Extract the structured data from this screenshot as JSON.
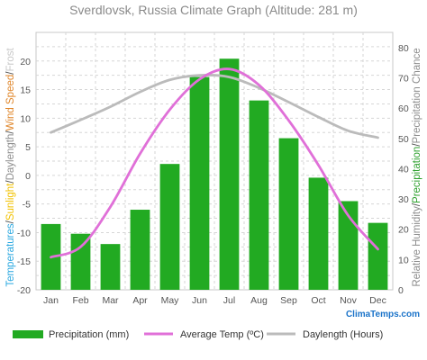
{
  "chart_data": {
    "type": "bar",
    "title": "Sverdlovsk, Russia Climate Graph (Altitude: 281 m)",
    "categories": [
      "Jan",
      "Feb",
      "Mar",
      "Apr",
      "May",
      "Jun",
      "Jul",
      "Aug",
      "Sep",
      "Oct",
      "Nov",
      "Dec"
    ],
    "ylim_left": [
      -20,
      25
    ],
    "ylim_right": [
      0,
      85
    ],
    "y_ticks_left": [
      "-20",
      "-15",
      "-10",
      "-5",
      "0",
      "5",
      "10",
      "15",
      "20"
    ],
    "y_ticks_right": [
      "0",
      "10",
      "20",
      "30",
      "40",
      "50",
      "60",
      "70",
      "80"
    ],
    "ylabel_left_parts": [
      {
        "text": "Temperatures",
        "color": "#2aa8e0"
      },
      {
        "text": "/",
        "color": "#555555"
      },
      {
        "text": "Sunlight",
        "color": "#f2c200"
      },
      {
        "text": "/",
        "color": "#555555"
      },
      {
        "text": "Daylength",
        "color": "#8c8c8c"
      },
      {
        "text": "/",
        "color": "#555555"
      },
      {
        "text": "Wind Speed",
        "color": "#e0862a"
      },
      {
        "text": "/",
        "color": "#555555"
      },
      {
        "text": "Frost",
        "color": "#c8c8c8"
      }
    ],
    "ylabel_right_parts": [
      {
        "text": "Relative Humidity",
        "color": "#8c8c8c"
      },
      {
        "text": "/",
        "color": "#555555"
      },
      {
        "text": "Precipitation",
        "color": "#2ca02c"
      },
      {
        "text": "/",
        "color": "#555555"
      },
      {
        "text": "Precipitation Chance",
        "color": "#8c8c8c"
      }
    ],
    "series": [
      {
        "name": "Precipitation (mm)",
        "type": "bar",
        "axis": "left",
        "color": "#22aa22",
        "values": [
          -8.5,
          -10.2,
          -12,
          -6,
          2,
          17.2,
          20.4,
          13.1,
          6.5,
          -0.4,
          -4.5,
          -8.3
        ]
      },
      {
        "name": "Average Temp (ºC)",
        "type": "line",
        "axis": "left",
        "color": "#e070d8",
        "values": [
          -14.3,
          -12.5,
          -5.5,
          3.8,
          11.5,
          16.8,
          18.6,
          15.8,
          9.6,
          1.8,
          -7,
          -12.9
        ]
      },
      {
        "name": "Daylength (Hours)",
        "type": "line",
        "axis": "left",
        "color": "#bbbbbb",
        "values": [
          7.5,
          9.7,
          12.0,
          14.6,
          16.7,
          17.5,
          17.2,
          15.3,
          12.8,
          10.2,
          7.8,
          6.6
        ]
      }
    ],
    "grid": true,
    "legend_position": "bottom"
  },
  "brand": "ClimaTemps.com"
}
